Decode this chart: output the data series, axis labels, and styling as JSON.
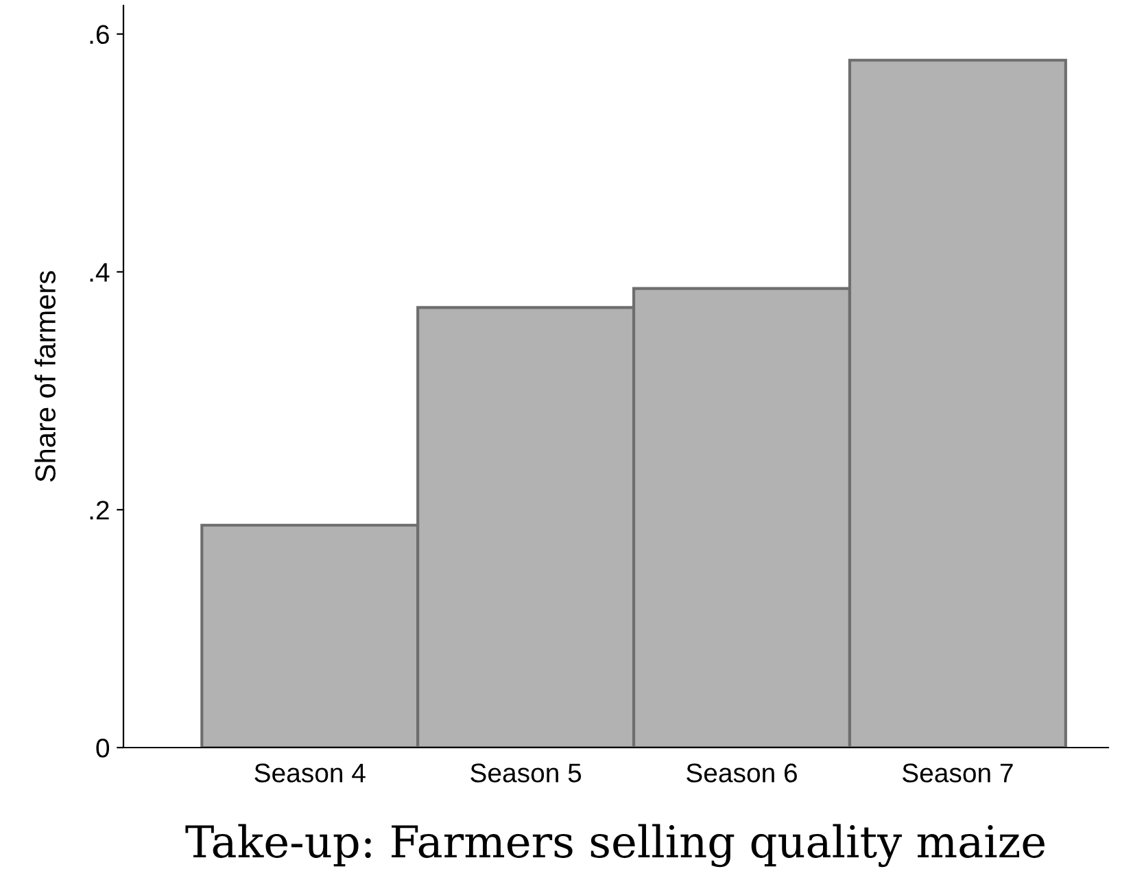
{
  "chart_data": {
    "type": "bar",
    "title": "Take-up: Farmers selling quality maize",
    "ylabel": "Share of farmers",
    "categories": [
      "Season 4",
      "Season 5",
      "Season 6",
      "Season 7"
    ],
    "values": [
      0.187,
      0.37,
      0.386,
      0.578
    ],
    "color": "#b2b2b2",
    "ylim": [
      0,
      0.624
    ],
    "yticks": [
      {
        "value": 0,
        "label": "0"
      },
      {
        "value": 0.2,
        "label": ".2"
      },
      {
        "value": 0.4,
        "label": ".4"
      },
      {
        "value": 0.6,
        "label": ".6"
      }
    ],
    "grid": false
  }
}
